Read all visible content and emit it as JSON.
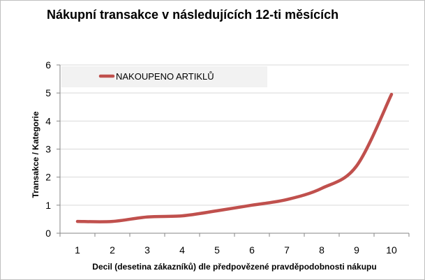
{
  "chart_data": {
    "type": "line",
    "title": "Nákupní transakce v následujících 12-ti měsících",
    "xlabel": "Decil (desetina zákazníků) dle předpovězené pravděpodobnosti nákupu",
    "ylabel": "Transakce / Kategorie",
    "categories": [
      "1",
      "2",
      "3",
      "4",
      "5",
      "6",
      "7",
      "8",
      "9",
      "10"
    ],
    "series": [
      {
        "name": "NAKOUPENO ARTIKLŮ",
        "values": [
          0.42,
          0.42,
          0.58,
          0.62,
          0.8,
          1.0,
          1.2,
          1.6,
          2.4,
          4.95
        ]
      }
    ],
    "ylim": [
      0,
      6
    ],
    "yticks": [
      "0",
      "1",
      "2",
      "3",
      "4",
      "5",
      "6"
    ],
    "grid": true,
    "legend": "top-left",
    "colors": {
      "line": "#c0504d",
      "grid": "#d9d9d9",
      "legend_bg": "#f2f2f2"
    }
  }
}
